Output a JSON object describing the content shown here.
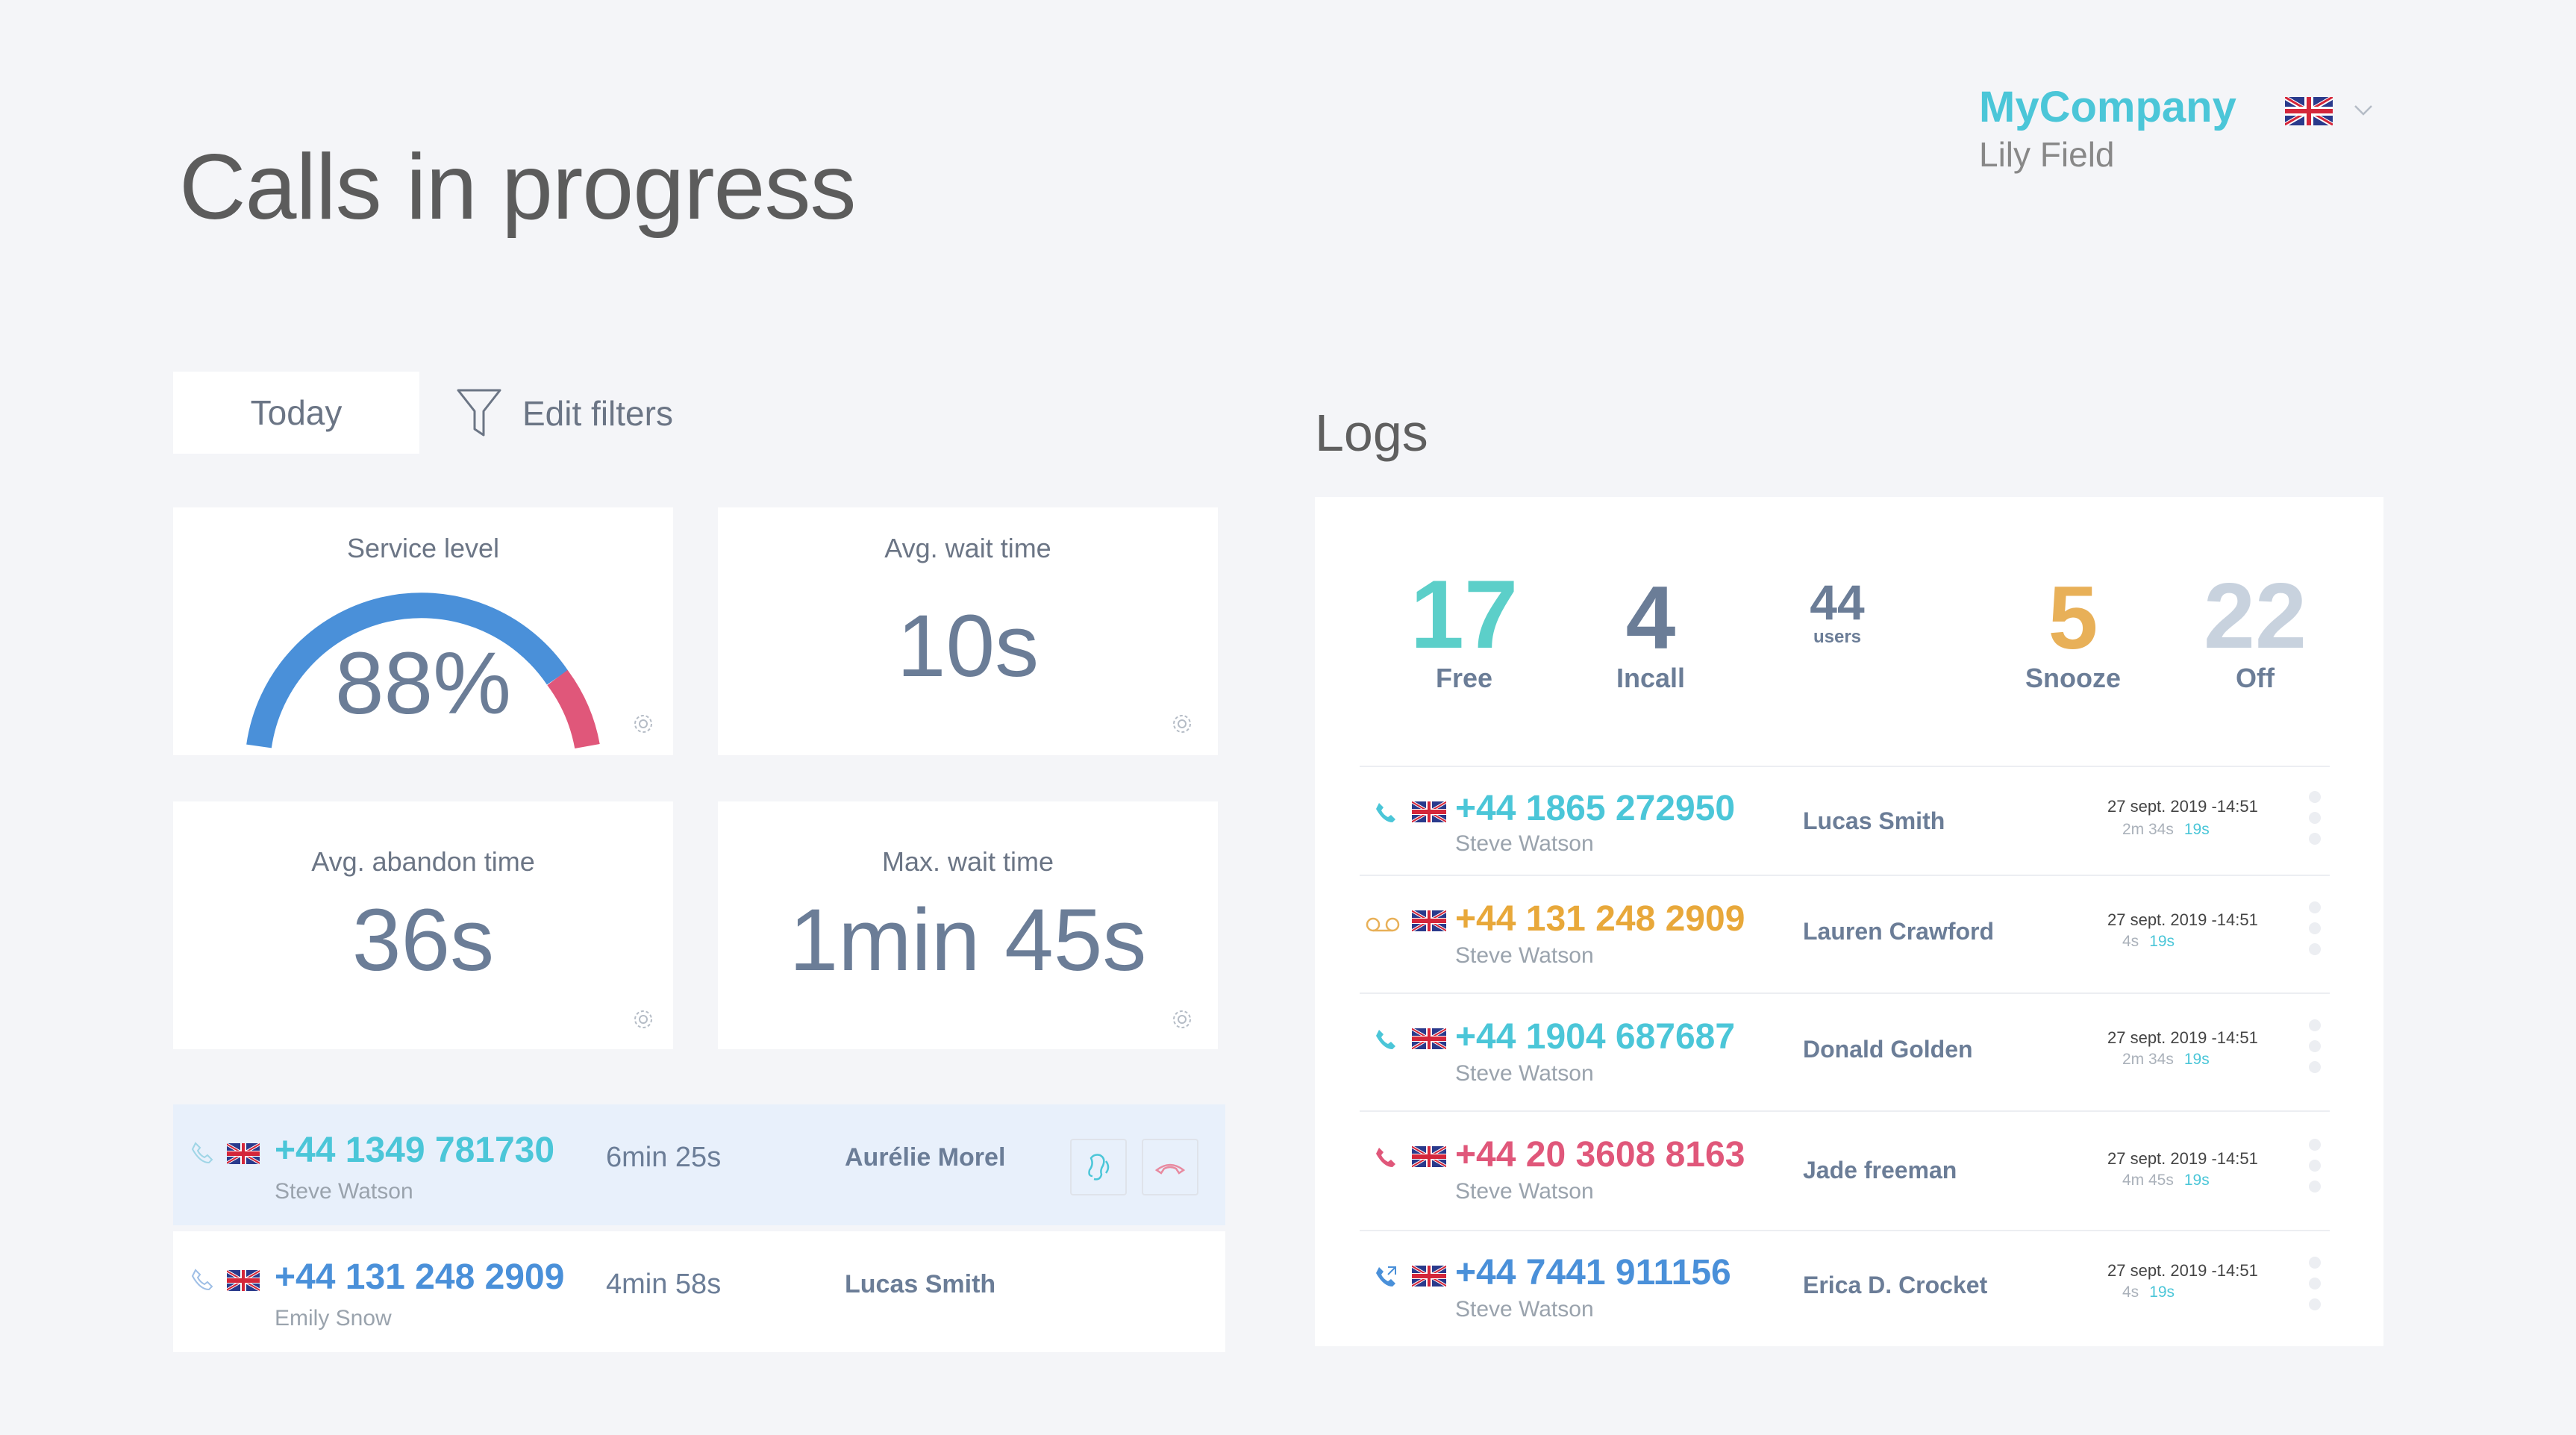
{
  "header": {
    "title": "Calls in progress",
    "company": "MyCompany",
    "user": "Lily Field",
    "language_flag": "uk-flag-icon"
  },
  "filters": {
    "period_label": "Today",
    "edit_filters_label": "Edit filters"
  },
  "kpis": {
    "service_level": {
      "label": "Service level",
      "value": "88%",
      "percent": 88
    },
    "avg_wait": {
      "label": "Avg. wait time",
      "value": "10s"
    },
    "avg_abandon": {
      "label": "Avg. abandon time",
      "value": "36s"
    },
    "max_wait": {
      "label": "Max. wait time",
      "value": "1min 45s"
    }
  },
  "active_calls": [
    {
      "number": "+44 1349 781730",
      "agent": "Steve Watson",
      "duration": "6min 25s",
      "contact": "Aurélie Morel",
      "color": "#4bc6d8"
    },
    {
      "number": "+44 131 248 2909",
      "agent": "Emily Snow",
      "duration": "4min 58s",
      "contact": "Lucas Smith",
      "color": "#4a90d9"
    }
  ],
  "logs": {
    "title": "Logs",
    "stats": {
      "free": {
        "value": "17",
        "label": "Free",
        "color": "#5ccfc9"
      },
      "incall": {
        "value": "4",
        "label": "Incall",
        "color": "#6b7d97"
      },
      "users": {
        "value": "44",
        "label": "users",
        "color": "#6b7d97"
      },
      "snooze": {
        "value": "5",
        "label": "Snooze",
        "color": "#e8b058"
      },
      "off": {
        "value": "22",
        "label": "Off",
        "color": "#c8d2de"
      }
    },
    "rows": [
      {
        "number": "+44 1865 272950",
        "agent": "Steve Watson",
        "contact": "Lucas Smith",
        "date": "27 sept. 2019 -14:51",
        "duration": "2m 34s",
        "wait": "19s",
        "color": "#4bc6d8",
        "icon": "phone-icon"
      },
      {
        "number": "+44 131 248 2909",
        "agent": "Steve Watson",
        "contact": "Lauren Crawford",
        "date": "27 sept. 2019 -14:51",
        "duration": "4s",
        "wait": "19s",
        "color": "#e8a83a",
        "icon": "voicemail-icon"
      },
      {
        "number": "+44 1904 687687",
        "agent": "Steve Watson",
        "contact": "Donald Golden",
        "date": "27 sept. 2019 -14:51",
        "duration": "2m 34s",
        "wait": "19s",
        "color": "#4bc6d8",
        "icon": "phone-icon"
      },
      {
        "number": "+44 20 3608 8163",
        "agent": "Steve Watson",
        "contact": "Jade freeman",
        "date": "27 sept. 2019 -14:51",
        "duration": "4m 45s",
        "wait": "19s",
        "color": "#e0577a",
        "icon": "phone-icon"
      },
      {
        "number": "+44 7441 911156",
        "agent": "Steve Watson",
        "contact": "Erica D. Crocket",
        "date": "27 sept. 2019 -14:51",
        "duration": "4s",
        "wait": "19s",
        "color": "#4a90d9",
        "icon": "phone-forward-icon"
      }
    ]
  }
}
